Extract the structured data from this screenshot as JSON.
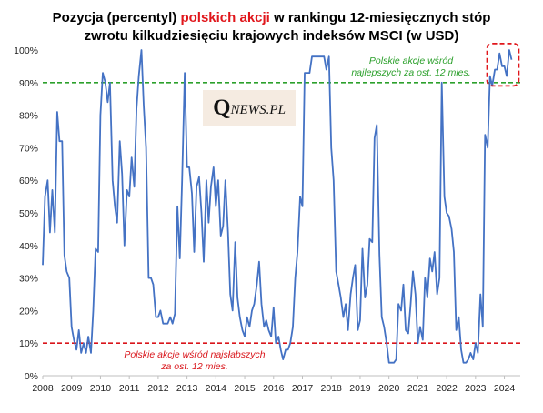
{
  "title": {
    "line1_a": "Pozycja (percentyl) ",
    "line1_highlight": "polskich akcji",
    "line1_b": " w rankingu 12-miesięcznych stóp",
    "line2": "zwrotu kilkudziesięciu krajowych indeksów MSCI (w USD)"
  },
  "logo": {
    "q": "Q",
    "rest": "NEWS.PL"
  },
  "colors": {
    "series": "#4472c4",
    "upper_threshold": "#2ca02c",
    "lower_threshold": "#d9151b",
    "highlight": "#e0161b"
  },
  "chart_data": {
    "type": "line",
    "title": "Pozycja (percentyl) polskich akcji w rankingu 12-miesięcznych stóp zwrotu kilkudziesięciu krajowych indeksów MSCI (w USD)",
    "xlabel": "",
    "ylabel": "",
    "ylim": [
      0,
      100
    ],
    "xlim": [
      2008.0,
      2024.55
    ],
    "y_ticks": [
      "0%",
      "10%",
      "20%",
      "30%",
      "40%",
      "50%",
      "60%",
      "70%",
      "80%",
      "90%",
      "100%"
    ],
    "x_ticks": [
      "2008",
      "2009",
      "2010",
      "2011",
      "2012",
      "2013",
      "2014",
      "2015",
      "2016",
      "2017",
      "2018",
      "2019",
      "2020",
      "2021",
      "2022",
      "2023",
      "2024"
    ],
    "grid": false,
    "reference_lines": [
      {
        "y": 90,
        "color": "#2ca02c",
        "style": "dashed",
        "label": "Polskie akcje wśród najlepszych za ost. 12 mies."
      },
      {
        "y": 10,
        "color": "#d9151b",
        "style": "dashed",
        "label": "Polskie akcje wśród najsłabszych za ost. 12 mies."
      }
    ],
    "annotations": [
      {
        "line1": "Polskie akcje wśród",
        "line2": "najlepszych za ost. 12 mies.",
        "color": "#2ca02c"
      },
      {
        "line1": "Polskie akcje wśród najsłabszych",
        "line2": "za ost. 12 mies.",
        "color": "#d9151b"
      }
    ],
    "highlight_box": {
      "x_range": [
        2023.4,
        2024.5
      ],
      "y_range": [
        89,
        102
      ]
    },
    "series": [
      {
        "values": [
          [
            2008.0,
            34
          ],
          [
            2008.08,
            55
          ],
          [
            2008.17,
            60
          ],
          [
            2008.25,
            44
          ],
          [
            2008.33,
            57
          ],
          [
            2008.42,
            44
          ],
          [
            2008.5,
            81
          ],
          [
            2008.58,
            72
          ],
          [
            2008.67,
            72
          ],
          [
            2008.75,
            37
          ],
          [
            2008.83,
            32
          ],
          [
            2008.92,
            30
          ],
          [
            2009.0,
            15
          ],
          [
            2009.08,
            11
          ],
          [
            2009.17,
            8
          ],
          [
            2009.25,
            14
          ],
          [
            2009.33,
            7
          ],
          [
            2009.42,
            10
          ],
          [
            2009.5,
            7
          ],
          [
            2009.58,
            12
          ],
          [
            2009.67,
            7
          ],
          [
            2009.75,
            20
          ],
          [
            2009.83,
            39
          ],
          [
            2009.92,
            38
          ],
          [
            2010.0,
            80
          ],
          [
            2010.08,
            93
          ],
          [
            2010.17,
            90
          ],
          [
            2010.25,
            84
          ],
          [
            2010.33,
            90
          ],
          [
            2010.42,
            60
          ],
          [
            2010.5,
            52
          ],
          [
            2010.58,
            47
          ],
          [
            2010.67,
            72
          ],
          [
            2010.75,
            62
          ],
          [
            2010.83,
            40
          ],
          [
            2010.92,
            57
          ],
          [
            2011.0,
            55
          ],
          [
            2011.08,
            67
          ],
          [
            2011.17,
            58
          ],
          [
            2011.25,
            82
          ],
          [
            2011.33,
            92
          ],
          [
            2011.42,
            100
          ],
          [
            2011.5,
            83
          ],
          [
            2011.58,
            70
          ],
          [
            2011.67,
            30
          ],
          [
            2011.75,
            30
          ],
          [
            2011.83,
            28
          ],
          [
            2011.92,
            18
          ],
          [
            2012.0,
            18
          ],
          [
            2012.08,
            20
          ],
          [
            2012.17,
            16
          ],
          [
            2012.25,
            16
          ],
          [
            2012.33,
            16
          ],
          [
            2012.42,
            18
          ],
          [
            2012.5,
            16
          ],
          [
            2012.58,
            19
          ],
          [
            2012.67,
            52
          ],
          [
            2012.75,
            36
          ],
          [
            2012.83,
            60
          ],
          [
            2012.92,
            93
          ],
          [
            2013.0,
            64
          ],
          [
            2013.08,
            64
          ],
          [
            2013.17,
            56
          ],
          [
            2013.25,
            38
          ],
          [
            2013.33,
            58
          ],
          [
            2013.42,
            61
          ],
          [
            2013.5,
            50
          ],
          [
            2013.58,
            35
          ],
          [
            2013.67,
            60
          ],
          [
            2013.75,
            47
          ],
          [
            2013.83,
            58
          ],
          [
            2013.92,
            64
          ],
          [
            2014.0,
            52
          ],
          [
            2014.08,
            60
          ],
          [
            2014.17,
            43
          ],
          [
            2014.25,
            46
          ],
          [
            2014.33,
            60
          ],
          [
            2014.42,
            44
          ],
          [
            2014.5,
            25
          ],
          [
            2014.58,
            20
          ],
          [
            2014.67,
            41
          ],
          [
            2014.75,
            24
          ],
          [
            2014.83,
            18
          ],
          [
            2014.92,
            14
          ],
          [
            2015.0,
            12
          ],
          [
            2015.08,
            18
          ],
          [
            2015.17,
            15
          ],
          [
            2015.25,
            20
          ],
          [
            2015.33,
            22
          ],
          [
            2015.42,
            28
          ],
          [
            2015.5,
            35
          ],
          [
            2015.58,
            22
          ],
          [
            2015.67,
            15
          ],
          [
            2015.75,
            17
          ],
          [
            2015.83,
            14
          ],
          [
            2015.92,
            12
          ],
          [
            2016.0,
            21
          ],
          [
            2016.08,
            10
          ],
          [
            2016.17,
            12
          ],
          [
            2016.25,
            8
          ],
          [
            2016.33,
            5
          ],
          [
            2016.42,
            8
          ],
          [
            2016.5,
            8
          ],
          [
            2016.58,
            10
          ],
          [
            2016.67,
            15
          ],
          [
            2016.75,
            30
          ],
          [
            2016.83,
            38
          ],
          [
            2016.92,
            55
          ],
          [
            2017.0,
            52
          ],
          [
            2017.08,
            93
          ],
          [
            2017.17,
            93
          ],
          [
            2017.25,
            93
          ],
          [
            2017.33,
            98
          ],
          [
            2017.42,
            98
          ],
          [
            2017.5,
            98
          ],
          [
            2017.58,
            98
          ],
          [
            2017.67,
            98
          ],
          [
            2017.75,
            98
          ],
          [
            2017.83,
            94
          ],
          [
            2017.92,
            98
          ],
          [
            2018.0,
            70
          ],
          [
            2018.08,
            60
          ],
          [
            2018.17,
            32
          ],
          [
            2018.25,
            28
          ],
          [
            2018.33,
            24
          ],
          [
            2018.42,
            18
          ],
          [
            2018.5,
            22
          ],
          [
            2018.58,
            14
          ],
          [
            2018.67,
            25
          ],
          [
            2018.75,
            30
          ],
          [
            2018.83,
            34
          ],
          [
            2018.92,
            14
          ],
          [
            2019.0,
            17
          ],
          [
            2019.08,
            39
          ],
          [
            2019.17,
            24
          ],
          [
            2019.25,
            28
          ],
          [
            2019.33,
            42
          ],
          [
            2019.42,
            41
          ],
          [
            2019.5,
            73
          ],
          [
            2019.58,
            77
          ],
          [
            2019.67,
            37
          ],
          [
            2019.75,
            18
          ],
          [
            2019.83,
            15
          ],
          [
            2019.92,
            10
          ],
          [
            2020.0,
            4
          ],
          [
            2020.08,
            4
          ],
          [
            2020.17,
            4
          ],
          [
            2020.25,
            5
          ],
          [
            2020.33,
            22
          ],
          [
            2020.42,
            20
          ],
          [
            2020.5,
            28
          ],
          [
            2020.58,
            14
          ],
          [
            2020.67,
            13
          ],
          [
            2020.75,
            22
          ],
          [
            2020.83,
            32
          ],
          [
            2020.92,
            25
          ],
          [
            2021.0,
            10
          ],
          [
            2021.08,
            15
          ],
          [
            2021.17,
            11
          ],
          [
            2021.25,
            30
          ],
          [
            2021.33,
            24
          ],
          [
            2021.42,
            36
          ],
          [
            2021.5,
            32
          ],
          [
            2021.58,
            38
          ],
          [
            2021.67,
            25
          ],
          [
            2021.75,
            30
          ],
          [
            2021.83,
            90
          ],
          [
            2021.92,
            55
          ],
          [
            2022.0,
            50
          ],
          [
            2022.08,
            49
          ],
          [
            2022.17,
            45
          ],
          [
            2022.25,
            38
          ],
          [
            2022.33,
            14
          ],
          [
            2022.42,
            18
          ],
          [
            2022.5,
            8
          ],
          [
            2022.58,
            4
          ],
          [
            2022.67,
            4
          ],
          [
            2022.75,
            5
          ],
          [
            2022.83,
            7
          ],
          [
            2022.92,
            5
          ],
          [
            2023.0,
            10
          ],
          [
            2023.08,
            7
          ],
          [
            2023.17,
            25
          ],
          [
            2023.25,
            15
          ],
          [
            2023.33,
            74
          ],
          [
            2023.42,
            70
          ],
          [
            2023.5,
            92
          ],
          [
            2023.58,
            89
          ],
          [
            2023.67,
            94
          ],
          [
            2023.75,
            94
          ],
          [
            2023.83,
            99
          ],
          [
            2023.92,
            95
          ],
          [
            2024.0,
            95
          ],
          [
            2024.08,
            92
          ],
          [
            2024.17,
            100
          ],
          [
            2024.25,
            97
          ]
        ]
      }
    ]
  }
}
